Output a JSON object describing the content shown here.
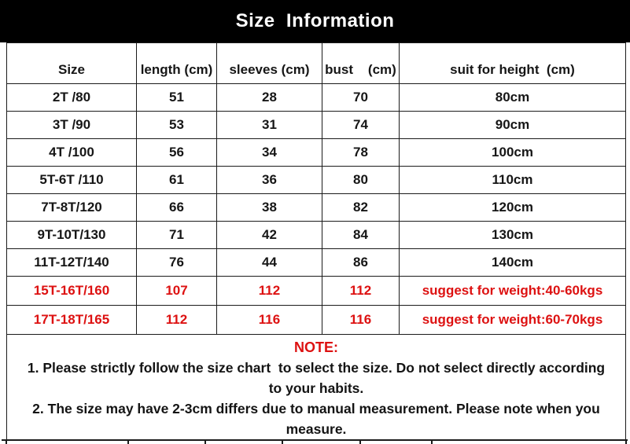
{
  "title": "Size  Information",
  "table": {
    "headers": [
      "Size",
      "length (cm)",
      "sleeves (cm)",
      "bust    (cm)",
      "suit for height  (cm)"
    ],
    "rows": [
      {
        "cells": [
          "2T /80",
          "51",
          "28",
          "70",
          "80cm"
        ],
        "highlight": false
      },
      {
        "cells": [
          "3T /90",
          "53",
          "31",
          "74",
          "90cm"
        ],
        "highlight": false
      },
      {
        "cells": [
          "4T /100",
          "56",
          "34",
          "78",
          "100cm"
        ],
        "highlight": false
      },
      {
        "cells": [
          "5T-6T /110",
          "61",
          "36",
          "80",
          "110cm"
        ],
        "highlight": false
      },
      {
        "cells": [
          "7T-8T/120",
          "66",
          "38",
          "82",
          "120cm"
        ],
        "highlight": false
      },
      {
        "cells": [
          "9T-10T/130",
          "71",
          "42",
          "84",
          "130cm"
        ],
        "highlight": false
      },
      {
        "cells": [
          "11T-12T/140",
          "76",
          "44",
          "86",
          "140cm"
        ],
        "highlight": false
      },
      {
        "cells": [
          "15T-16T/160",
          "107",
          "112",
          "112",
          "suggest for weight:40-60kgs"
        ],
        "highlight": true
      },
      {
        "cells": [
          "17T-18T/165",
          "112",
          "116",
          "116",
          "suggest for weight:60-70kgs"
        ],
        "highlight": true
      }
    ]
  },
  "note": {
    "heading": "NOTE:",
    "lines": [
      "1. Please strictly follow the size chart  to select the size. Do not select directly according",
      "to your habits.",
      "2. The size may have 2-3cm differs due to manual measurement. Please note when you",
      "measure."
    ]
  },
  "colors": {
    "accent_red": "#dd1111",
    "title_bar_bg": "#000000",
    "title_bar_text": "#ffffff"
  }
}
